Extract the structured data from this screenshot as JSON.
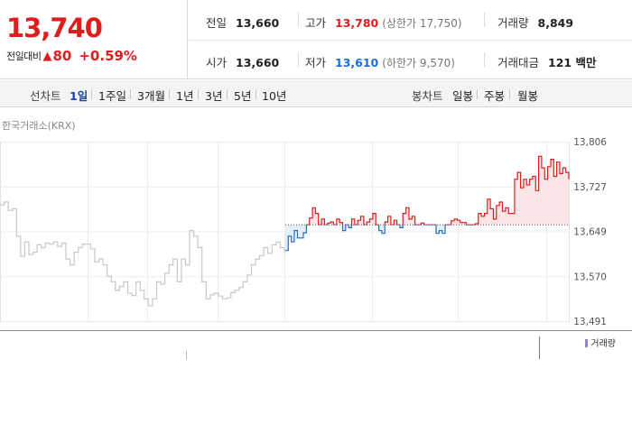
{
  "summary": {
    "current_price": "13,740",
    "change_label": "전일대비",
    "change_arrow": "▲",
    "change_value": "80",
    "change_percent": "+0.59%",
    "prev_close_label": "전일",
    "prev_close": "13,660",
    "high_label": "고가",
    "high": "13,780",
    "upper_limit": "(상한가 17,750)",
    "volume_label": "거래량",
    "volume": "8,849",
    "open_label": "시가",
    "open": "13,660",
    "low_label": "저가",
    "low": "13,610",
    "lower_limit": "(하한가 9,570)",
    "trade_value_label": "거래대금",
    "trade_value": "121 백만"
  },
  "period_bar": {
    "line_chart_label": "선차트",
    "line_items": [
      "1일",
      "1주일",
      "3개월",
      "1년",
      "3년",
      "5년",
      "10년"
    ],
    "active": "1일",
    "candle_chart_label": "봉차트",
    "candle_items": [
      "일봉",
      "주봉",
      "월봉"
    ]
  },
  "source_label": "한국거래소(KRX)",
  "volume_legend": "거래량",
  "colors": {
    "up": "#e01d1d",
    "down": "#1b6fd1",
    "prev_line": "#c8c8c8",
    "up_fill": "#fde5e7",
    "down_fill": "#e3eefb",
    "volume": "#9b7fd1"
  },
  "chart_data": {
    "type": "line",
    "title": "",
    "xlabel": "",
    "ylabel": "",
    "ylim": [
      13491,
      13806
    ],
    "y_ticks": [
      "13,806",
      "13,727",
      "13,649",
      "13,570",
      "13,491"
    ],
    "baseline": 13660,
    "series": [
      {
        "values": [
          13695,
          13700,
          13685,
          13688,
          13640,
          13605,
          13630,
          13608,
          13612,
          13625,
          13620,
          13628,
          13626,
          13630,
          13622,
          13628,
          13600,
          13590,
          13612,
          13620,
          13626,
          13626,
          13618,
          13595,
          13600,
          13590,
          13570,
          13560,
          13545,
          13552,
          13560,
          13540,
          13536,
          13560,
          13545,
          13530,
          13518,
          13530,
          13560,
          13556,
          13575,
          13590,
          13600,
          13560,
          13600,
          13590,
          13650,
          13640,
          13620,
          13560,
          13530,
          13537,
          13540,
          13535,
          13530,
          13532,
          13541,
          13545,
          13550,
          13560,
          13572,
          13590,
          13600,
          13606,
          13620,
          13610,
          13625,
          13630,
          13620,
          13610
        ]
      },
      {
        "values": [
          13615,
          13640,
          13630,
          13650,
          13637,
          13637,
          13646,
          13660,
          13672,
          13690,
          13680,
          13660,
          13670,
          13660,
          13663,
          13665,
          13660,
          13670,
          13664,
          13650,
          13660,
          13655,
          13670,
          13660,
          13668,
          13675,
          13660,
          13665,
          13670,
          13680,
          13660,
          13650,
          13645,
          13665,
          13675,
          13660,
          13668,
          13660,
          13655,
          13680,
          13690,
          13670,
          13675,
          13660,
          13660,
          13663,
          13660,
          13660,
          13660,
          13660,
          13645,
          13650,
          13645,
          13660,
          13660,
          13667,
          13670,
          13668,
          13664,
          13664,
          13660,
          13660,
          13660,
          13662,
          13680,
          13675,
          13680,
          13705,
          13688,
          13670,
          13694,
          13700,
          13684,
          13690,
          13680,
          13680,
          13740,
          13752,
          13725,
          13740,
          13730,
          13740,
          13745,
          13720,
          13780,
          13760,
          13740,
          13762,
          13775,
          13745,
          13770,
          13750,
          13760,
          13752,
          13740
        ]
      }
    ]
  }
}
